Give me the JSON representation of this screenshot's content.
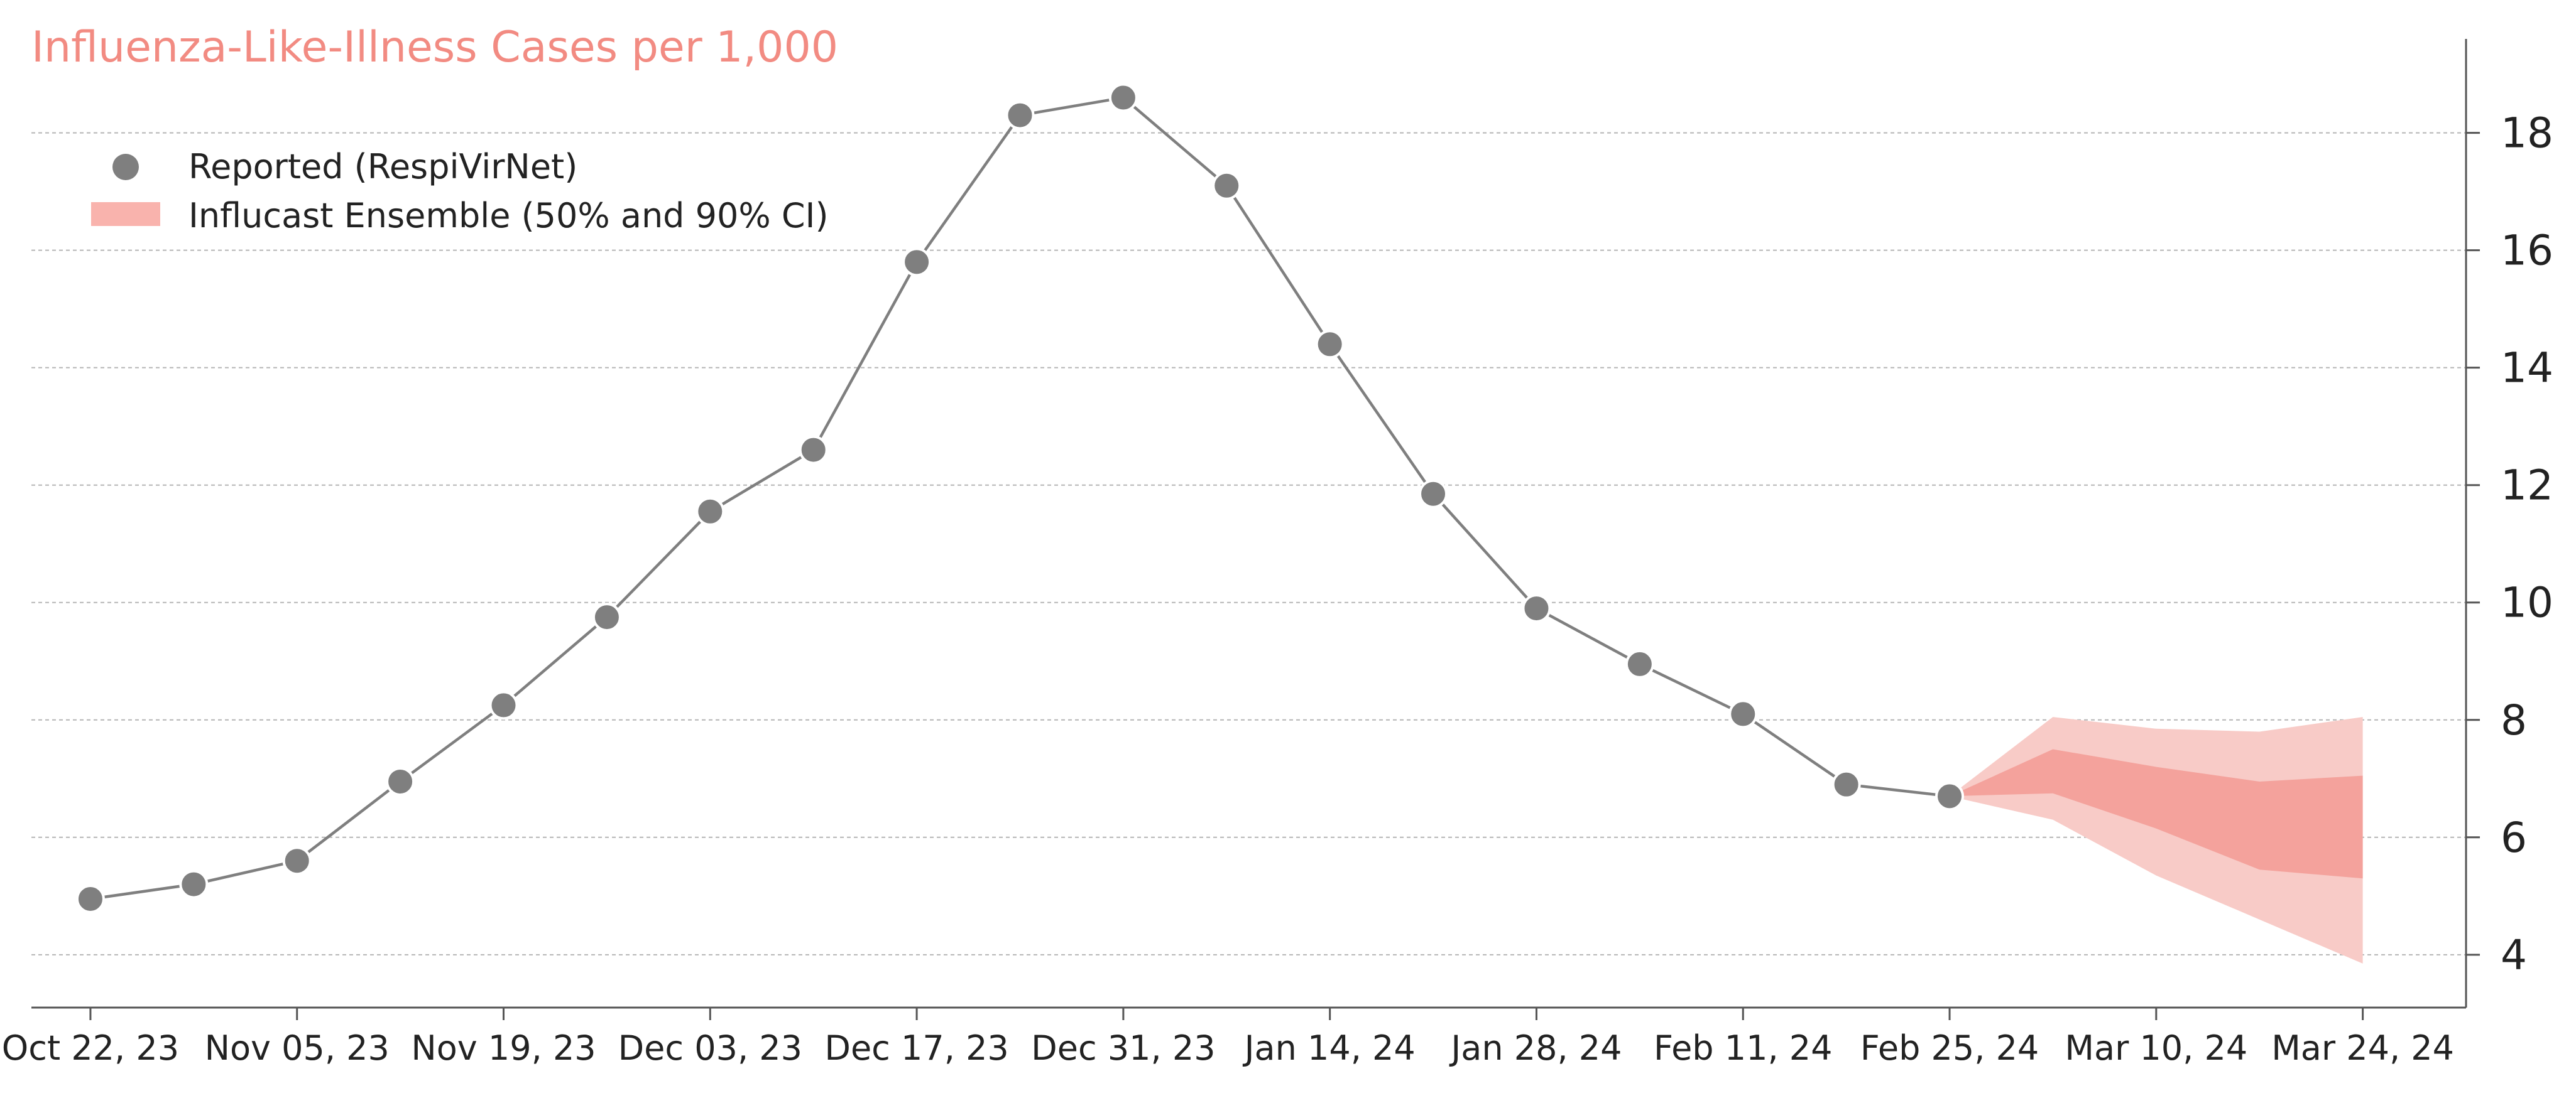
{
  "chart_data": {
    "type": "line",
    "title": "Influenza-Like-Illness Cases per 1,000",
    "xlabel": "",
    "ylabel": "",
    "x_tick_labels": [
      "Oct 22, 23",
      "Nov 05, 23",
      "Nov 19, 23",
      "Dec 03, 23",
      "Dec 17, 23",
      "Dec 31, 23",
      "Jan 14, 24",
      "Jan 28, 24",
      "Feb 11, 24",
      "Feb 25, 24",
      "Mar 10, 24",
      "Mar 24, 24"
    ],
    "x_range": [
      "2023-10-18",
      "2024-03-31"
    ],
    "ylim": [
      3.1,
      19.6
    ],
    "y_ticks": [
      4,
      6,
      8,
      10,
      12,
      14,
      16,
      18
    ],
    "grid": "horizontal dashed",
    "legend_position": "top-left",
    "y_axis_side": "right",
    "colors": {
      "title": "#f28b82",
      "reported": "#7f7f7f",
      "ci90": "#f8cbc7",
      "ci50": "#f4a29c",
      "legend_patch": "#f9b3ad"
    },
    "series": [
      {
        "name": "Reported (RespiVirNet)",
        "kind": "line-markers",
        "dates": [
          "2023-10-22",
          "2023-10-29",
          "2023-11-05",
          "2023-11-12",
          "2023-11-19",
          "2023-11-26",
          "2023-12-03",
          "2023-12-10",
          "2023-12-17",
          "2023-12-24",
          "2023-12-31",
          "2024-01-07",
          "2024-01-14",
          "2024-01-21",
          "2024-01-28",
          "2024-02-04",
          "2024-02-11",
          "2024-02-18",
          "2024-02-25"
        ],
        "values": [
          4.95,
          5.2,
          5.6,
          6.95,
          8.25,
          9.75,
          11.55,
          12.6,
          15.8,
          18.3,
          18.6,
          17.1,
          14.4,
          11.85,
          9.9,
          8.95,
          8.1,
          6.9,
          6.7
        ]
      },
      {
        "name": "Influcast Ensemble (50% and 90% CI)",
        "kind": "band",
        "dates": [
          "2024-02-25",
          "2024-03-03",
          "2024-03-10",
          "2024-03-17",
          "2024-03-24"
        ],
        "ci90_lower": [
          6.7,
          6.3,
          5.35,
          4.6,
          3.85
        ],
        "ci90_upper": [
          6.7,
          8.05,
          7.85,
          7.8,
          8.05
        ],
        "ci50_lower": [
          6.7,
          6.75,
          6.15,
          5.45,
          5.3
        ],
        "ci50_upper": [
          6.7,
          7.5,
          7.2,
          6.95,
          7.05
        ]
      }
    ]
  }
}
